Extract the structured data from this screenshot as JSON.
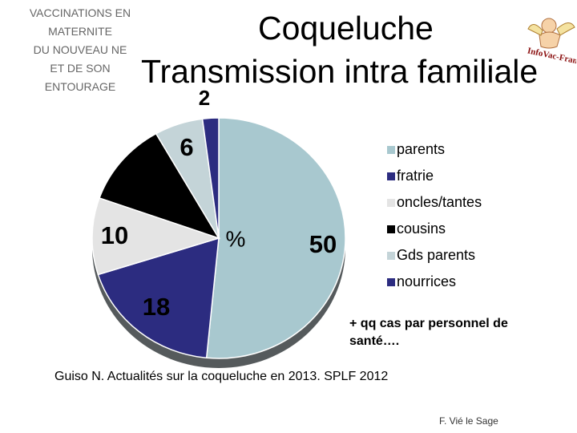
{
  "header": {
    "subtitle": "VACCINATIONS EN\nMATERNITE\nDU NOUVEAU NE\nET DE SON\nENTOURAGE",
    "title_line1": "Coqueluche",
    "title_line2": "Transmission intra familiale"
  },
  "chart_data": {
    "type": "pie",
    "categories": [
      "parents",
      "fratrie",
      "oncles/tantes",
      "cousins",
      "Gds parents",
      "nourrices"
    ],
    "values": [
      50,
      18,
      10,
      11,
      6,
      2
    ],
    "data_labels": [
      "50",
      "18",
      "10",
      "",
      "6",
      "2"
    ],
    "center_label": "%",
    "colors": [
      "#A8C8CF",
      "#2C2C80",
      "#E4E4E4",
      "#000000",
      "#C4D4D8",
      "#2C2C80"
    ],
    "legend_position": "right"
  },
  "legend": {
    "items": [
      {
        "label": "parents",
        "color": "#A8C8CF"
      },
      {
        "label": "fratrie",
        "color": "#2C2C80"
      },
      {
        "label": "oncles/tantes",
        "color": "#E4E4E4"
      },
      {
        "label": "cousins",
        "color": "#000000"
      },
      {
        "label": "Gds parents",
        "color": "#C4D4D8"
      },
      {
        "label": "nourrices",
        "color": "#2C2C80"
      }
    ]
  },
  "note": "+ qq cas par personnel de\nsanté….",
  "source": "Guiso N. Actualités sur la coqueluche en 2013. SPLF 2012",
  "footer": "F. Vié le Sage",
  "logo": {
    "icon": "cherub-logo-icon",
    "text": "InfoVac-France"
  }
}
